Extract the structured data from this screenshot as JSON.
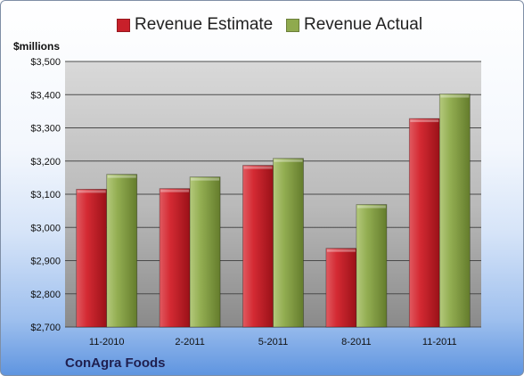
{
  "colors": {
    "estimate": "#c8202a",
    "actual": "#8faa4e"
  },
  "legend": {
    "estimate_label": "Revenue Estimate",
    "actual_label": "Revenue Actual"
  },
  "unit_label": "$millions",
  "company": "ConAgra Foods",
  "chart_data": {
    "type": "bar",
    "categories": [
      "11-2010",
      "2-2011",
      "5-2011",
      "8-2011",
      "11-2011"
    ],
    "series": [
      {
        "name": "Revenue Estimate",
        "values": [
          3115,
          3117,
          3187,
          2937,
          3328
        ]
      },
      {
        "name": "Revenue Actual",
        "values": [
          3160,
          3152,
          3208,
          3069,
          3402
        ]
      }
    ],
    "ylim": [
      2700,
      3500
    ],
    "yticks": [
      2700,
      2800,
      2900,
      3000,
      3100,
      3200,
      3300,
      3400,
      3500
    ],
    "ytick_labels": [
      "$2,700",
      "$2,800",
      "$2,900",
      "$3,000",
      "$3,100",
      "$3,200",
      "$3,300",
      "$3,400",
      "$3,500"
    ],
    "grid": true,
    "legend_position": "top"
  }
}
